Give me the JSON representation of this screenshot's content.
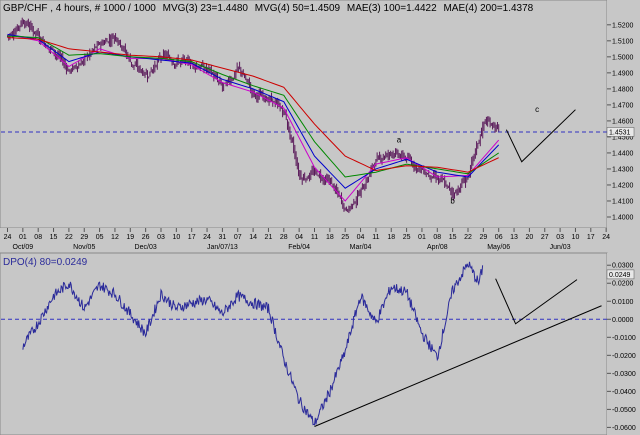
{
  "chart_data": [
    {
      "type": "candlestick",
      "header": [
        {
          "text": "GBP/CHF , 4 hours, # 1000 / 1000",
          "color": "#000000"
        },
        {
          "text": "MVG(3) 23=1.4480",
          "color": "#cc00cc"
        },
        {
          "text": "MVG(4) 50=1.4509",
          "color": "#0000cc"
        },
        {
          "text": "MAE(3) 100=1.4422",
          "color": "#008800"
        },
        {
          "text": "MAE(4) 200=1.4378",
          "color": "#cc0000"
        }
      ],
      "ylim": [
        1.395,
        1.528
      ],
      "y_ticks": [
        "1.5200",
        "1.5100",
        "1.5000",
        "1.4900",
        "1.4800",
        "1.4700",
        "1.4600",
        "1.4500",
        "1.4400",
        "1.4300",
        "1.4200",
        "1.4100",
        "1.4000"
      ],
      "y_tick_values": [
        1.52,
        1.51,
        1.5,
        1.49,
        1.48,
        1.47,
        1.46,
        1.45,
        1.44,
        1.43,
        1.42,
        1.41,
        1.4
      ],
      "last_price_label": "1.4531",
      "last_price": 1.4531,
      "reference_level": 1.4531,
      "x_day_ticks": [
        "24",
        "01",
        "08",
        "15",
        "22",
        "29",
        "05",
        "12",
        "19",
        "26",
        "03",
        "10",
        "17",
        "24",
        "31",
        "07",
        "14",
        "21",
        "28",
        "04",
        "11",
        "18",
        "25",
        "04",
        "11",
        "18",
        "25",
        "01",
        "08",
        "15",
        "22",
        "29",
        "06",
        "13",
        "20",
        "27",
        "03",
        "10",
        "17",
        "24"
      ],
      "x_period_labels": [
        "Oct/09",
        "Nov/05",
        "Dec/03",
        "Jan/07/13",
        "Feb/04",
        "Mar/04",
        "Apr/08",
        "May/06",
        "Jun/03"
      ],
      "x_period_label_at_tick": [
        1,
        5,
        9,
        14,
        19,
        23,
        28,
        32,
        36
      ],
      "price_path": [
        [
          0,
          1.513
        ],
        [
          1,
          1.523
        ],
        [
          2,
          1.512
        ],
        [
          3,
          1.503
        ],
        [
          4,
          1.491
        ],
        [
          5,
          1.499
        ],
        [
          6,
          1.508
        ],
        [
          7,
          1.514
        ],
        [
          8,
          1.496
        ],
        [
          9,
          1.488
        ],
        [
          10,
          1.501
        ],
        [
          11,
          1.497
        ],
        [
          12,
          1.496
        ],
        [
          13,
          1.492
        ],
        [
          14,
          1.481
        ],
        [
          15,
          1.493
        ],
        [
          16,
          1.476
        ],
        [
          17,
          1.474
        ],
        [
          18,
          1.465
        ],
        [
          19,
          1.424
        ],
        [
          20,
          1.428
        ],
        [
          21,
          1.422
        ],
        [
          22,
          1.403
        ],
        [
          23,
          1.417
        ],
        [
          24,
          1.437
        ],
        [
          25,
          1.441
        ],
        [
          26,
          1.436
        ],
        [
          27,
          1.429
        ],
        [
          28,
          1.424
        ],
        [
          29,
          1.414
        ],
        [
          30,
          1.427
        ],
        [
          31,
          1.46
        ],
        [
          32,
          1.455
        ]
      ],
      "ma_lines": [
        {
          "name": "MVG(3) 23",
          "color": "#cc00cc",
          "values": [
            [
              0,
              1.514
            ],
            [
              2,
              1.51
            ],
            [
              4,
              1.494
            ],
            [
              6,
              1.505
            ],
            [
              8,
              1.499
            ],
            [
              10,
              1.499
            ],
            [
              12,
              1.495
            ],
            [
              14,
              1.484
            ],
            [
              16,
              1.478
            ],
            [
              18,
              1.468
            ],
            [
              20,
              1.431
            ],
            [
              22,
              1.41
            ],
            [
              24,
              1.433
            ],
            [
              26,
              1.437
            ],
            [
              28,
              1.425
            ],
            [
              30,
              1.426
            ],
            [
              32,
              1.448
            ]
          ]
        },
        {
          "name": "MVG(4) 50",
          "color": "#0000cc",
          "values": [
            [
              0,
              1.514
            ],
            [
              2,
              1.511
            ],
            [
              4,
              1.497
            ],
            [
              6,
              1.503
            ],
            [
              8,
              1.5
            ],
            [
              10,
              1.498
            ],
            [
              12,
              1.496
            ],
            [
              14,
              1.486
            ],
            [
              16,
              1.48
            ],
            [
              18,
              1.472
            ],
            [
              20,
              1.438
            ],
            [
              22,
              1.418
            ],
            [
              24,
              1.43
            ],
            [
              26,
              1.436
            ],
            [
              28,
              1.428
            ],
            [
              30,
              1.425
            ],
            [
              32,
              1.445
            ]
          ]
        },
        {
          "name": "MAE(3) 100",
          "color": "#008800",
          "values": [
            [
              0,
              1.513
            ],
            [
              2,
              1.512
            ],
            [
              4,
              1.501
            ],
            [
              6,
              1.502
            ],
            [
              8,
              1.5
            ],
            [
              10,
              1.499
            ],
            [
              12,
              1.497
            ],
            [
              14,
              1.489
            ],
            [
              16,
              1.482
            ],
            [
              18,
              1.476
            ],
            [
              20,
              1.447
            ],
            [
              22,
              1.425
            ],
            [
              24,
              1.428
            ],
            [
              26,
              1.433
            ],
            [
              28,
              1.43
            ],
            [
              30,
              1.427
            ],
            [
              32,
              1.44
            ]
          ]
        },
        {
          "name": "MAE(4) 200",
          "color": "#cc0000",
          "values": [
            [
              0,
              1.512
            ],
            [
              2,
              1.511
            ],
            [
              4,
              1.505
            ],
            [
              6,
              1.503
            ],
            [
              8,
              1.501
            ],
            [
              10,
              1.5
            ],
            [
              12,
              1.498
            ],
            [
              14,
              1.493
            ],
            [
              16,
              1.488
            ],
            [
              18,
              1.481
            ],
            [
              20,
              1.458
            ],
            [
              22,
              1.438
            ],
            [
              24,
              1.429
            ],
            [
              26,
              1.432
            ],
            [
              28,
              1.431
            ],
            [
              30,
              1.428
            ],
            [
              32,
              1.437
            ]
          ]
        }
      ],
      "wave_labels": [
        {
          "label": "a",
          "x": 25.5,
          "y": 1.4465
        },
        {
          "label": "b",
          "x": 29,
          "y": 1.4085
        },
        {
          "label": "c",
          "x": 34.5,
          "y": 1.4655
        }
      ],
      "projection": [
        [
          32.5,
          1.4545
        ],
        [
          33.5,
          1.4345
        ],
        [
          37,
          1.467
        ]
      ]
    },
    {
      "type": "line",
      "title": "DPO(4) 80=0.0249",
      "ylim": [
        -0.062,
        0.034
      ],
      "y_ticks": [
        "0.0300",
        "0.0200",
        "0.0100",
        "0.0000",
        "-0.0100",
        "-0.0200",
        "-0.0300",
        "-0.0400",
        "-0.0500",
        "-0.0600"
      ],
      "y_tick_values": [
        0.03,
        0.02,
        0.01,
        0.0,
        -0.01,
        -0.02,
        -0.03,
        -0.04,
        -0.05,
        -0.06
      ],
      "last_value_label": "0.0249",
      "last_value": 0.0249,
      "zero_level": 0.0,
      "series": [
        {
          "name": "DPO(4) 80",
          "color": "#2b2b9a",
          "values": [
            [
              1,
              -0.015
            ],
            [
              2,
              -0.002
            ],
            [
              3,
              0.013
            ],
            [
              4,
              0.02
            ],
            [
              5,
              0.006
            ],
            [
              6,
              0.019
            ],
            [
              7,
              0.014
            ],
            [
              8,
              0.003
            ],
            [
              9,
              -0.008
            ],
            [
              10,
              0.014
            ],
            [
              11,
              0.006
            ],
            [
              12,
              0.009
            ],
            [
              13,
              0.011
            ],
            [
              14,
              0.003
            ],
            [
              15,
              0.013
            ],
            [
              16,
              0.009
            ],
            [
              17,
              0.006
            ],
            [
              18,
              -0.022
            ],
            [
              19,
              -0.045
            ],
            [
              20,
              -0.058
            ],
            [
              21,
              -0.04
            ],
            [
              22,
              -0.018
            ],
            [
              23,
              0.013
            ],
            [
              24,
              -0.002
            ],
            [
              25,
              0.018
            ],
            [
              26,
              0.015
            ],
            [
              27,
              -0.008
            ],
            [
              28,
              -0.021
            ],
            [
              29,
              0.016
            ],
            [
              30,
              0.031
            ],
            [
              30.7,
              0.02
            ],
            [
              31,
              0.03
            ]
          ]
        }
      ],
      "trendline": [
        [
          20,
          -0.0595
        ],
        [
          38.7,
          0.0075
        ]
      ],
      "projection": [
        [
          31.8,
          0.0225
        ],
        [
          33.1,
          -0.0025
        ],
        [
          37.1,
          0.022
        ]
      ]
    }
  ]
}
